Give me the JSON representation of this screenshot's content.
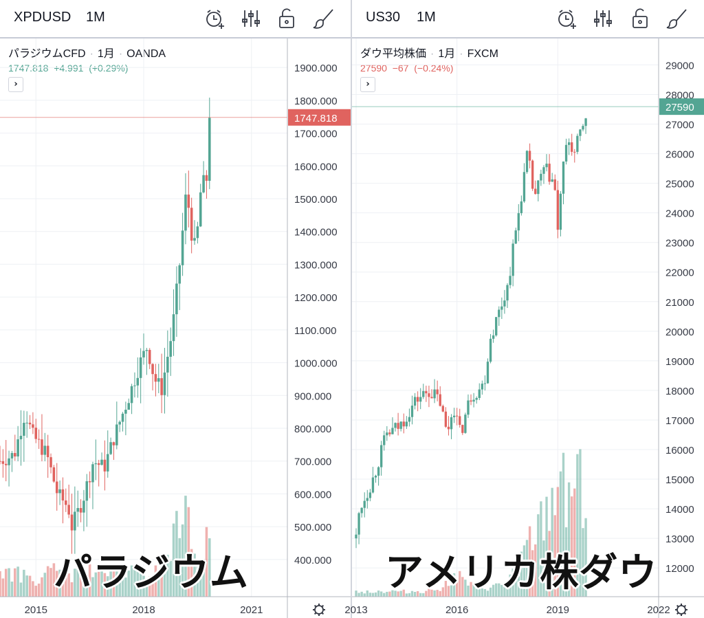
{
  "colors": {
    "up": "#53a593",
    "down": "#e0635f",
    "grid": "#eef0f4",
    "axis_text": "#363a45",
    "divider": "#d1d4dc"
  },
  "icons": [
    "alarm-add-icon",
    "indicators-icon",
    "lock-open-icon",
    "brush-icon",
    "gear-icon"
  ],
  "left": {
    "header": {
      "symbol": "XPDUSD",
      "interval": "1M"
    },
    "legend": {
      "name": "パラジウムCFD",
      "interval": "1月",
      "source": "OANDA"
    },
    "quote": {
      "last": "1747.818",
      "change": "+4.991",
      "change_pct": "(+0.29%)",
      "color": "#53a593"
    },
    "price_label": "1747.818",
    "overlay": "パラジウム"
  },
  "right": {
    "header": {
      "symbol": "US30",
      "interval": "1M"
    },
    "legend": {
      "name": "ダウ平均株価",
      "interval": "1月",
      "source": "FXCM"
    },
    "quote": {
      "last": "27590",
      "change": "−67",
      "change_pct": "(−0.24%)",
      "color": "#e0635f"
    },
    "price_label": "27590",
    "overlay": "アメリカ株ダウ"
  },
  "chart_data": [
    {
      "type": "candlestick",
      "title": "パラジウムCFD",
      "x_ticks": [
        "2015",
        "2018",
        "2021"
      ],
      "x_range": [
        2014.0,
        2022.0
      ],
      "y_ticks": [
        "400.000",
        "500.000",
        "600.000",
        "700.000",
        "800.000",
        "900.000",
        "1000.000",
        "1100.000",
        "1200.000",
        "1300.000",
        "1400.000",
        "1500.000",
        "1600.000",
        "1700.000",
        "1800.000",
        "1900.000"
      ],
      "y_range": [
        320,
        1980
      ],
      "last_price": 1747.818,
      "close_anchors": [
        [
          2014.0,
          700
        ],
        [
          2014.4,
          720
        ],
        [
          2014.7,
          850
        ],
        [
          2014.9,
          780
        ],
        [
          2015.3,
          720
        ],
        [
          2015.6,
          600
        ],
        [
          2015.9,
          560
        ],
        [
          2016.0,
          500
        ],
        [
          2016.3,
          580
        ],
        [
          2016.6,
          700
        ],
        [
          2016.9,
          680
        ],
        [
          2017.2,
          780
        ],
        [
          2017.6,
          900
        ],
        [
          2017.9,
          1000
        ],
        [
          2018.1,
          1050
        ],
        [
          2018.3,
          950
        ],
        [
          2018.5,
          920
        ],
        [
          2018.8,
          1100
        ],
        [
          2019.0,
          1300
        ],
        [
          2019.2,
          1540
        ],
        [
          2019.3,
          1410
        ],
        [
          2019.45,
          1340
        ],
        [
          2019.6,
          1540
        ],
        [
          2019.75,
          1560
        ],
        [
          2019.85,
          1800
        ],
        [
          2019.9,
          1748
        ]
      ],
      "volume_anchors": [
        [
          2014.0,
          0.15
        ],
        [
          2015.0,
          0.1
        ],
        [
          2015.5,
          0.14
        ],
        [
          2016.0,
          0.12
        ],
        [
          2016.5,
          0.15
        ],
        [
          2017.0,
          0.13
        ],
        [
          2017.5,
          0.15
        ],
        [
          2018.0,
          0.12
        ],
        [
          2018.5,
          0.15
        ],
        [
          2018.9,
          0.35
        ],
        [
          2019.1,
          0.6
        ],
        [
          2019.3,
          0.3
        ],
        [
          2019.5,
          0.28
        ],
        [
          2019.9,
          0.3
        ]
      ]
    },
    {
      "type": "candlestick",
      "title": "ダウ平均株価",
      "x_ticks": [
        "2013",
        "2016",
        "2019",
        "2022"
      ],
      "x_range": [
        2013.0,
        2022.0
      ],
      "y_ticks": [
        "12000",
        "13000",
        "14000",
        "15000",
        "16000",
        "17000",
        "18000",
        "19000",
        "20000",
        "21000",
        "22000",
        "23000",
        "24000",
        "25000",
        "26000",
        "27000",
        "28000",
        "29000"
      ],
      "y_range": [
        11400,
        29800
      ],
      "last_price": 27590,
      "close_anchors": [
        [
          2013.0,
          13000
        ],
        [
          2013.1,
          14000
        ],
        [
          2013.5,
          15000
        ],
        [
          2013.9,
          16500
        ],
        [
          2014.3,
          16800
        ],
        [
          2014.8,
          17700
        ],
        [
          2015.2,
          18000
        ],
        [
          2015.5,
          17600
        ],
        [
          2015.7,
          16500
        ],
        [
          2015.9,
          17500
        ],
        [
          2016.1,
          16500
        ],
        [
          2016.4,
          17800
        ],
        [
          2016.8,
          18200
        ],
        [
          2017.0,
          19800
        ],
        [
          2017.5,
          21500
        ],
        [
          2017.9,
          24500
        ],
        [
          2018.1,
          26000
        ],
        [
          2018.3,
          24500
        ],
        [
          2018.6,
          25500
        ],
        [
          2018.9,
          25000
        ],
        [
          2019.0,
          23300
        ],
        [
          2019.1,
          25000
        ],
        [
          2019.3,
          26500
        ],
        [
          2019.5,
          26000
        ],
        [
          2019.7,
          26800
        ],
        [
          2019.9,
          27590
        ]
      ],
      "volume_anchors": [
        [
          2013.0,
          0.03
        ],
        [
          2014.0,
          0.03
        ],
        [
          2015.0,
          0.03
        ],
        [
          2015.5,
          0.05
        ],
        [
          2016.0,
          0.12
        ],
        [
          2016.5,
          0.05
        ],
        [
          2017.0,
          0.05
        ],
        [
          2017.5,
          0.08
        ],
        [
          2018.0,
          0.25
        ],
        [
          2018.5,
          0.4
        ],
        [
          2018.9,
          0.55
        ],
        [
          2019.1,
          0.8
        ],
        [
          2019.3,
          0.6
        ],
        [
          2019.6,
          0.7
        ],
        [
          2019.9,
          0.55
        ]
      ]
    }
  ]
}
